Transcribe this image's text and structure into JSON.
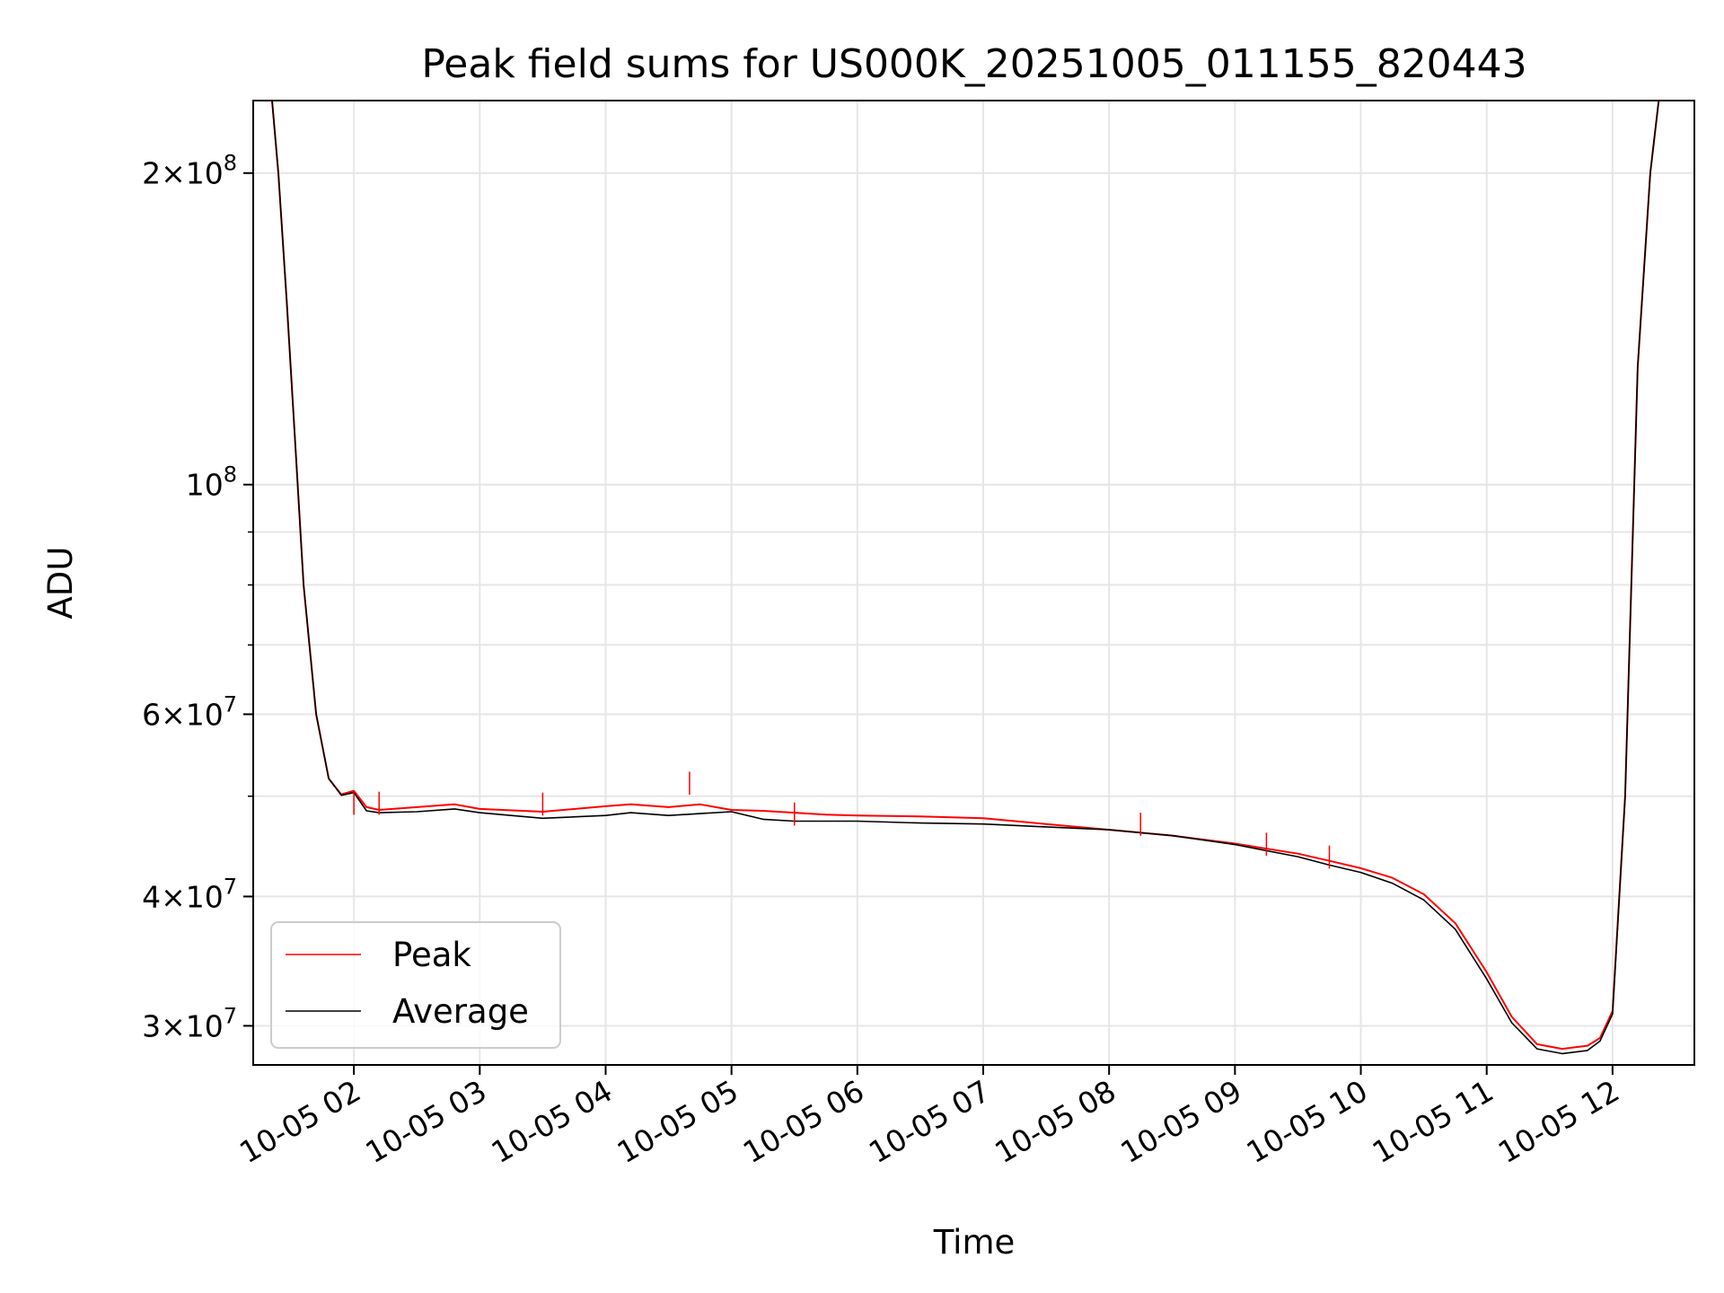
{
  "chart_data": {
    "type": "line",
    "title": "Peak field sums for US000K_20251005_011155_820443",
    "xlabel": "Time",
    "ylabel": "ADU",
    "yscale": "log",
    "grid": true,
    "legend_position": "lower-left",
    "xlim": [
      "2025-10-05 01:12",
      "2025-10-05 12:39"
    ],
    "ylim": [
      27500000,
      235000000
    ],
    "x_ticks": [
      "10-05 02",
      "10-05 03",
      "10-05 04",
      "10-05 05",
      "10-05 06",
      "10-05 07",
      "10-05 08",
      "10-05 09",
      "10-05 10",
      "10-05 11",
      "10-05 12"
    ],
    "y_ticks": [
      {
        "value": 30000000,
        "mant": "3",
        "exp": "7"
      },
      {
        "value": 40000000,
        "mant": "4",
        "exp": "7"
      },
      {
        "value": 60000000,
        "mant": "6",
        "exp": "7"
      },
      {
        "value": 100000000,
        "mant": "",
        "exp": "8"
      },
      {
        "value": 200000000,
        "mant": "2",
        "exp": "8"
      }
    ],
    "series": [
      {
        "name": "Peak",
        "color": "#ff0000",
        "x": [
          "2025-10-05 01:21",
          "2025-10-05 01:24",
          "2025-10-05 01:28",
          "2025-10-05 01:32",
          "2025-10-05 01:36",
          "2025-10-05 01:42",
          "2025-10-05 01:48",
          "2025-10-05 01:54",
          "2025-10-05 02:00",
          "2025-10-05 02:06",
          "2025-10-05 02:12",
          "2025-10-05 02:30",
          "2025-10-05 02:48",
          "2025-10-05 03:00",
          "2025-10-05 03:30",
          "2025-10-05 04:00",
          "2025-10-05 04:12",
          "2025-10-05 04:30",
          "2025-10-05 04:45",
          "2025-10-05 05:00",
          "2025-10-05 05:15",
          "2025-10-05 05:30",
          "2025-10-05 05:45",
          "2025-10-05 06:00",
          "2025-10-05 06:30",
          "2025-10-05 07:00",
          "2025-10-05 07:30",
          "2025-10-05 08:00",
          "2025-10-05 08:30",
          "2025-10-05 09:00",
          "2025-10-05 09:30",
          "2025-10-05 09:45",
          "2025-10-05 10:00",
          "2025-10-05 10:15",
          "2025-10-05 10:30",
          "2025-10-05 10:45",
          "2025-10-05 11:00",
          "2025-10-05 11:12",
          "2025-10-05 11:24",
          "2025-10-05 11:36",
          "2025-10-05 11:48",
          "2025-10-05 11:54",
          "2025-10-05 12:00",
          "2025-10-05 12:06",
          "2025-10-05 12:12",
          "2025-10-05 12:18",
          "2025-10-05 12:22"
        ],
        "y": [
          235000000,
          200000000,
          150000000,
          110000000,
          80000000,
          60000000,
          52000000,
          50200000,
          50600000,
          48800000,
          48500000,
          48800000,
          49100000,
          48600000,
          48300000,
          48900000,
          49100000,
          48800000,
          49100000,
          48500000,
          48400000,
          48200000,
          48000000,
          47900000,
          47800000,
          47600000,
          47000000,
          46400000,
          45800000,
          45000000,
          44000000,
          43300000,
          42600000,
          41700000,
          40200000,
          37700000,
          33800000,
          30600000,
          28800000,
          28500000,
          28700000,
          29200000,
          31000000,
          50000000,
          130000000,
          200000000,
          235000000
        ]
      },
      {
        "name": "Average",
        "color": "#000000",
        "x": [
          "2025-10-05 01:21",
          "2025-10-05 01:24",
          "2025-10-05 01:28",
          "2025-10-05 01:32",
          "2025-10-05 01:36",
          "2025-10-05 01:42",
          "2025-10-05 01:48",
          "2025-10-05 01:54",
          "2025-10-05 02:00",
          "2025-10-05 02:06",
          "2025-10-05 02:12",
          "2025-10-05 02:30",
          "2025-10-05 02:48",
          "2025-10-05 03:00",
          "2025-10-05 03:30",
          "2025-10-05 04:00",
          "2025-10-05 04:12",
          "2025-10-05 04:30",
          "2025-10-05 04:45",
          "2025-10-05 05:00",
          "2025-10-05 05:15",
          "2025-10-05 05:30",
          "2025-10-05 05:45",
          "2025-10-05 06:00",
          "2025-10-05 06:30",
          "2025-10-05 07:00",
          "2025-10-05 07:30",
          "2025-10-05 08:00",
          "2025-10-05 08:30",
          "2025-10-05 09:00",
          "2025-10-05 09:30",
          "2025-10-05 09:45",
          "2025-10-05 10:00",
          "2025-10-05 10:15",
          "2025-10-05 10:30",
          "2025-10-05 10:45",
          "2025-10-05 11:00",
          "2025-10-05 11:12",
          "2025-10-05 11:24",
          "2025-10-05 11:36",
          "2025-10-05 11:48",
          "2025-10-05 11:54",
          "2025-10-05 12:00",
          "2025-10-05 12:06",
          "2025-10-05 12:12",
          "2025-10-05 12:18",
          "2025-10-05 12:22"
        ],
        "y": [
          235000000,
          200000000,
          150000000,
          110000000,
          80000000,
          60000000,
          52000000,
          50100000,
          50400000,
          48400000,
          48200000,
          48300000,
          48600000,
          48200000,
          47600000,
          47900000,
          48200000,
          47900000,
          48100000,
          48300000,
          47500000,
          47300000,
          47300000,
          47300000,
          47100000,
          47000000,
          46700000,
          46400000,
          45800000,
          44900000,
          43700000,
          42900000,
          42200000,
          41200000,
          39700000,
          37200000,
          33300000,
          30200000,
          28500000,
          28200000,
          28400000,
          29000000,
          30800000,
          50000000,
          130000000,
          200000000,
          235000000
        ]
      }
    ],
    "peak_spikes": [
      {
        "x": "2025-10-05 02:00",
        "y": 50500000
      },
      {
        "x": "2025-10-05 02:12",
        "y": 50500000
      },
      {
        "x": "2025-10-05 03:30",
        "y": 50400000
      },
      {
        "x": "2025-10-05 04:40",
        "y": 52800000
      },
      {
        "x": "2025-10-05 05:30",
        "y": 49300000
      },
      {
        "x": "2025-10-05 08:15",
        "y": 48200000
      },
      {
        "x": "2025-10-05 09:15",
        "y": 46100000
      },
      {
        "x": "2025-10-05 09:45",
        "y": 44800000
      }
    ]
  }
}
